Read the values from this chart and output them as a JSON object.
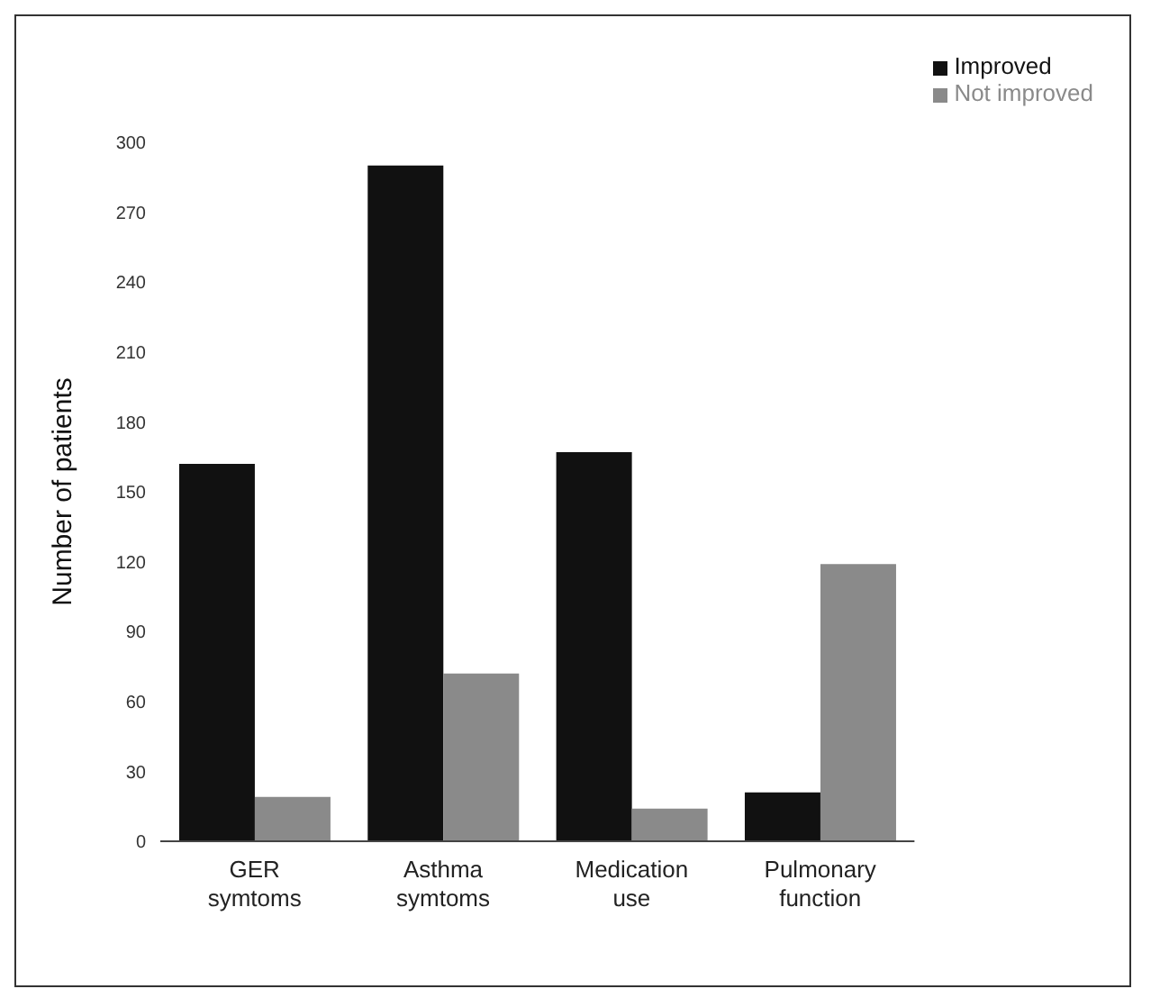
{
  "chart_data": {
    "type": "bar",
    "ylabel": "Number of patients",
    "categories": [
      "GER\nsymtoms",
      "Asthma\nsymtoms",
      "Medication\nuse",
      "Pulmonary\nfunction"
    ],
    "series": [
      {
        "name": "Improved",
        "color": "#111111",
        "values": [
          162,
          290,
          167,
          21
        ]
      },
      {
        "name": "Not improved",
        "color": "#8a8a8a",
        "values": [
          19,
          72,
          14,
          119
        ]
      }
    ],
    "ylim": [
      0,
      300
    ],
    "yticks": [
      0,
      30,
      60,
      90,
      120,
      150,
      180,
      210,
      240,
      270,
      300
    ],
    "grid": false,
    "legend": "top right"
  }
}
